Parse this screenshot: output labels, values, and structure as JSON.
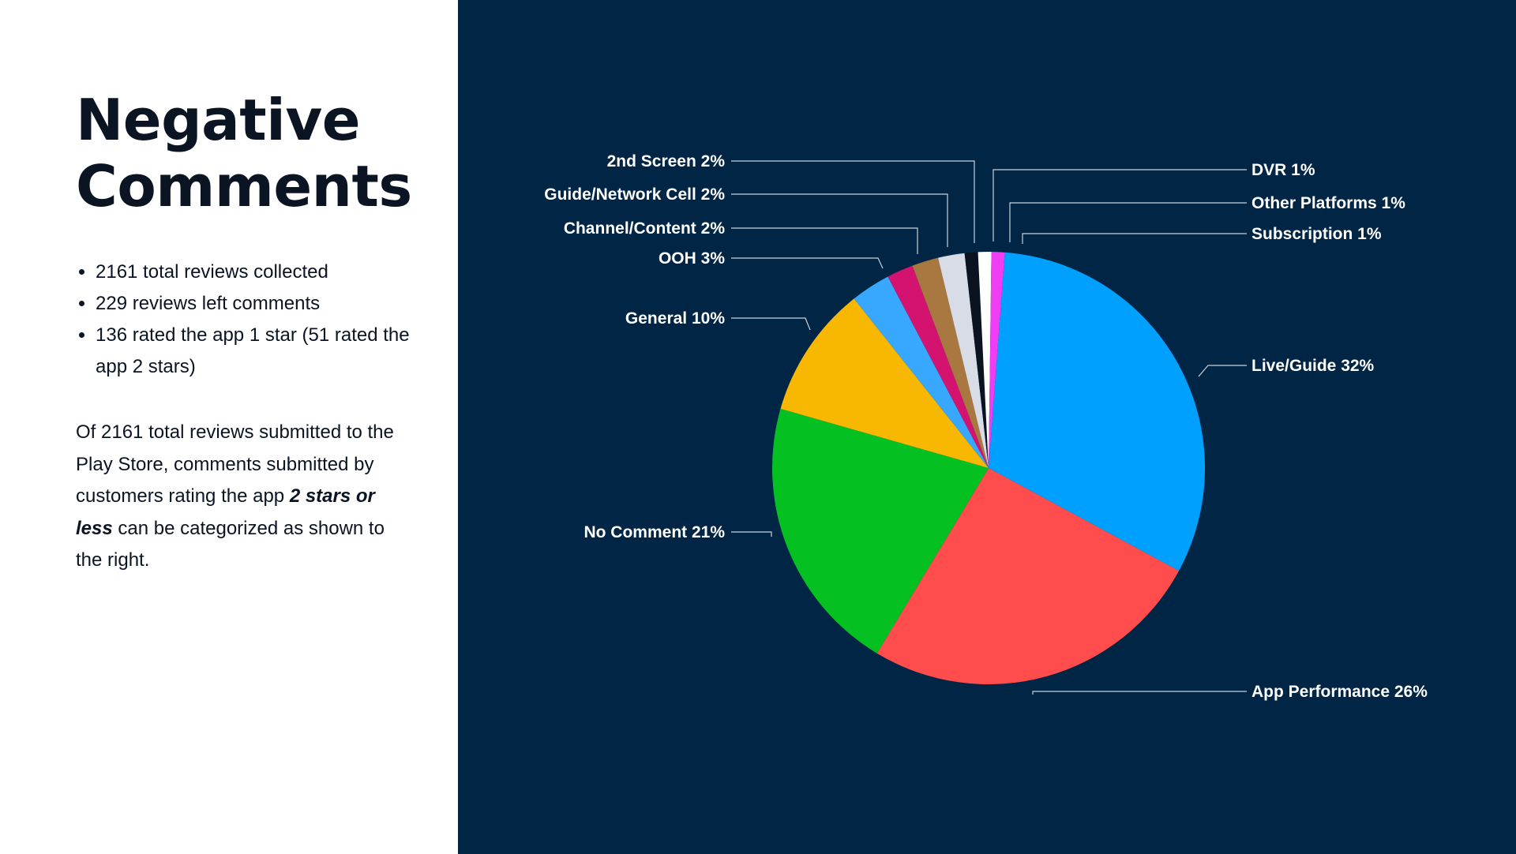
{
  "title": {
    "line1": "Negative",
    "line2": "Comments"
  },
  "bullets": [
    "2161 total reviews collected",
    "229 reviews left comments",
    "136 rated the app 1 star (51 rated the app 2 stars)"
  ],
  "description": {
    "before": "Of 2161 total reviews submitted to the Play Store, comments submitted by customers rating the app ",
    "emphasis": "2 stars or less",
    "after": " can be categorized as shown to the right."
  },
  "colors": {
    "left_background": "#ffffff",
    "right_background": "#002545",
    "text_dark": "#0b1423"
  },
  "chart_data": {
    "type": "pie",
    "title": "",
    "unit": "%",
    "slices": [
      {
        "label": "Live/Guide 32%",
        "value": 32,
        "color": "#00a0ff"
      },
      {
        "label": "App Performance 26%",
        "value": 26,
        "color": "#ff4d4d"
      },
      {
        "label": "No Comment 21%",
        "value": 21,
        "color": "#05c021"
      },
      {
        "label": "General 10%",
        "value": 10,
        "color": "#f8b700"
      },
      {
        "label": "OOH 3%",
        "value": 3,
        "color": "#38a8ff"
      },
      {
        "label": "Channel/Content 2%",
        "value": 2,
        "color": "#d3136f"
      },
      {
        "label": "Guide/Network Cell 2%",
        "value": 2,
        "color": "#a97841"
      },
      {
        "label": "2nd Screen 2%",
        "value": 2,
        "color": "#d8dce6"
      },
      {
        "label": "DVR 1%",
        "value": 1,
        "color": "#0b1220"
      },
      {
        "label": "Other Platforms 1%",
        "value": 1,
        "color": "#ffffff"
      },
      {
        "label": "Subscription 1%",
        "value": 1,
        "color": "#ee3df2"
      }
    ]
  }
}
